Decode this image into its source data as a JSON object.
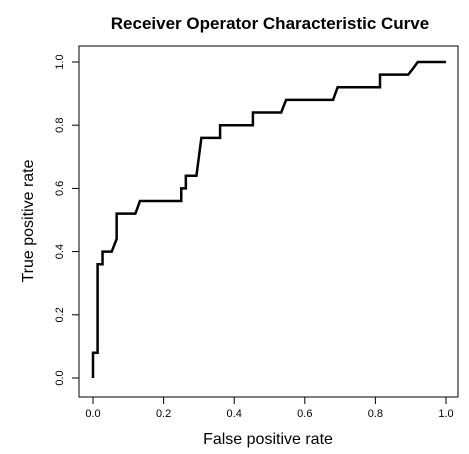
{
  "chart_data": {
    "type": "line",
    "title": "Receiver Operator Characteristic Curve",
    "xlabel": "False positive rate",
    "ylabel": "True positive rate",
    "xlim": [
      0,
      1
    ],
    "ylim": [
      0,
      1
    ],
    "x_ticks": [
      "0.0",
      "0.2",
      "0.4",
      "0.6",
      "0.8",
      "1.0"
    ],
    "y_ticks": [
      "0.0",
      "0.2",
      "0.4",
      "0.6",
      "0.8",
      "1.0"
    ],
    "grid": false,
    "legend": "none",
    "line_color": "#000000",
    "series": [
      {
        "x": [
          0.0,
          0.0,
          0.013,
          0.013,
          0.027,
          0.027,
          0.053,
          0.067,
          0.067,
          0.12,
          0.133,
          0.133,
          0.25,
          0.25,
          0.263,
          0.263,
          0.293,
          0.307,
          0.307,
          0.36,
          0.36,
          0.453,
          0.453,
          0.533,
          0.547,
          0.547,
          0.68,
          0.693,
          0.693,
          0.813,
          0.813,
          0.893,
          0.907,
          0.907,
          0.92,
          1.0
        ],
        "y": [
          0.0,
          0.08,
          0.08,
          0.36,
          0.36,
          0.4,
          0.4,
          0.44,
          0.52,
          0.52,
          0.56,
          0.56,
          0.56,
          0.6,
          0.6,
          0.64,
          0.64,
          0.76,
          0.76,
          0.76,
          0.8,
          0.8,
          0.84,
          0.84,
          0.88,
          0.88,
          0.88,
          0.92,
          0.92,
          0.92,
          0.96,
          0.96,
          0.98,
          0.98,
          1.0,
          1.0
        ]
      }
    ]
  }
}
